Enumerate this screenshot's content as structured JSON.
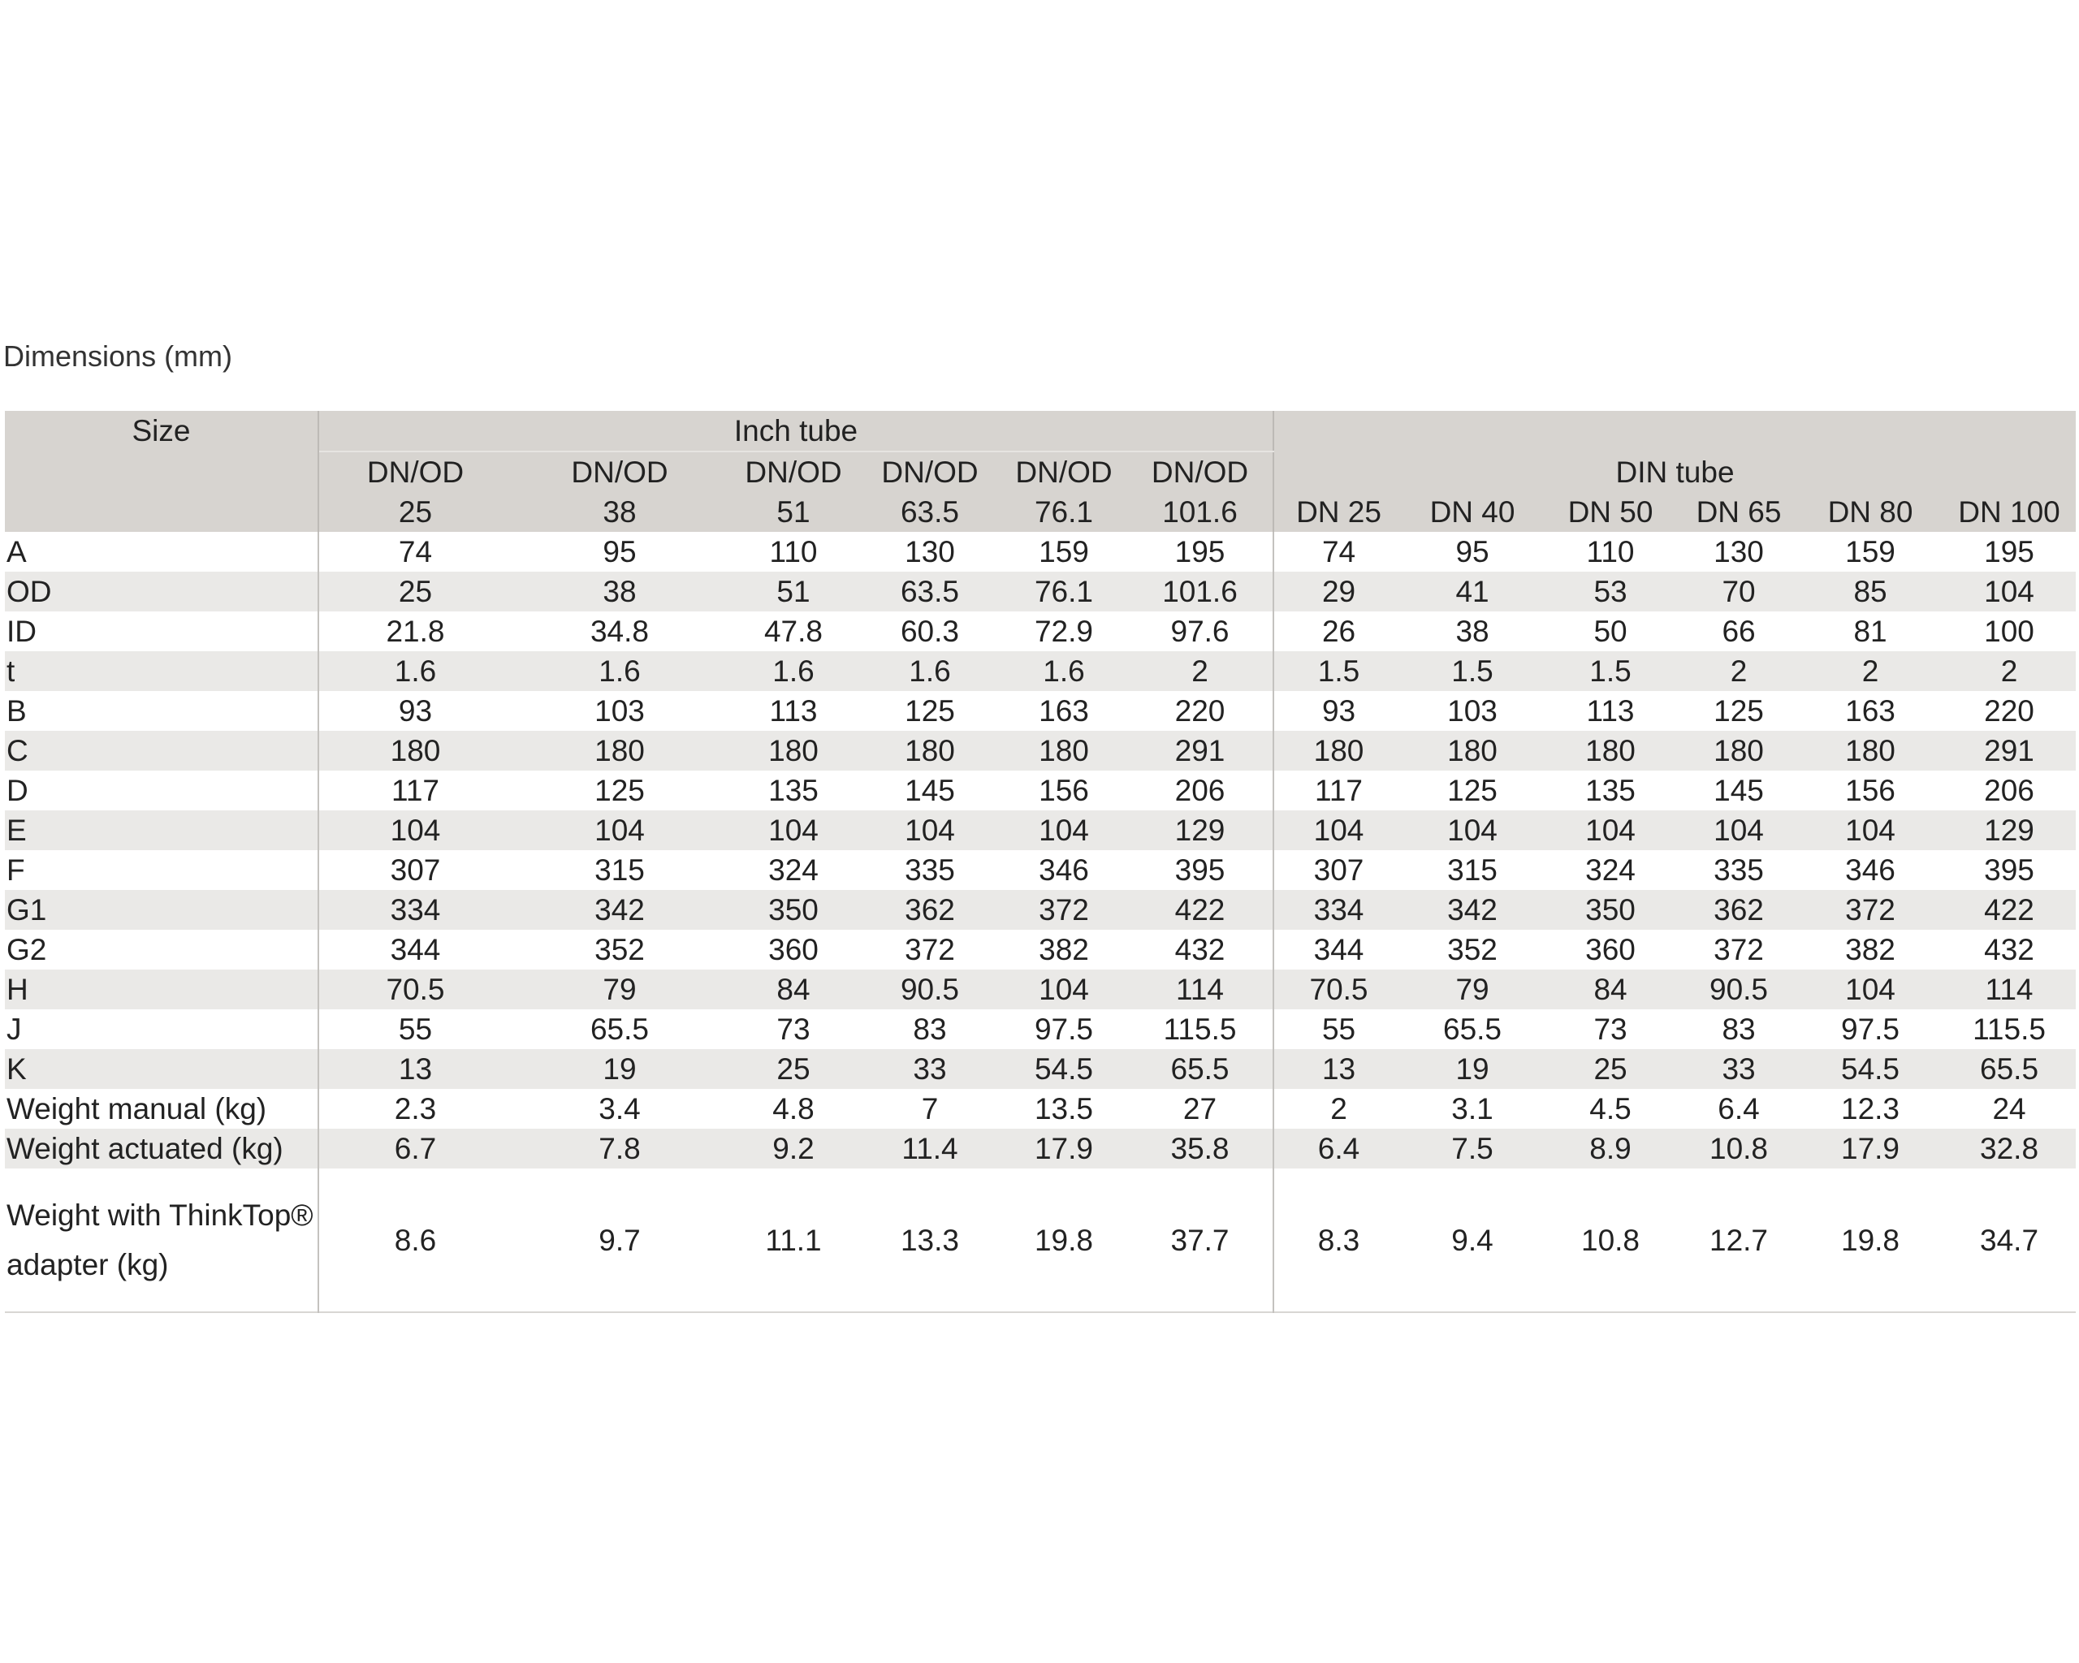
{
  "title": "Dimensions (mm)",
  "table": {
    "size_header": "Size",
    "inch_group": "Inch tube",
    "din_group": "DIN tube",
    "inch_columns": [
      {
        "top": "DN/OD",
        "bottom": "25"
      },
      {
        "top": "DN/OD",
        "bottom": "38"
      },
      {
        "top": "DN/OD",
        "bottom": "51"
      },
      {
        "top": "DN/OD",
        "bottom": "63.5"
      },
      {
        "top": "DN/OD",
        "bottom": "76.1"
      },
      {
        "top": "DN/OD",
        "bottom": "101.6"
      }
    ],
    "din_columns": [
      "DN 25",
      "DN 40",
      "DN 50",
      "DN 65",
      "DN 80",
      "DN 100"
    ],
    "rows": [
      {
        "label": "A",
        "values": [
          "74",
          "95",
          "110",
          "130",
          "159",
          "195",
          "74",
          "95",
          "110",
          "130",
          "159",
          "195"
        ]
      },
      {
        "label": "OD",
        "values": [
          "25",
          "38",
          "51",
          "63.5",
          "76.1",
          "101.6",
          "29",
          "41",
          "53",
          "70",
          "85",
          "104"
        ]
      },
      {
        "label": "ID",
        "values": [
          "21.8",
          "34.8",
          "47.8",
          "60.3",
          "72.9",
          "97.6",
          "26",
          "38",
          "50",
          "66",
          "81",
          "100"
        ]
      },
      {
        "label": "t",
        "values": [
          "1.6",
          "1.6",
          "1.6",
          "1.6",
          "1.6",
          "2",
          "1.5",
          "1.5",
          "1.5",
          "2",
          "2",
          "2"
        ]
      },
      {
        "label": "B",
        "values": [
          "93",
          "103",
          "113",
          "125",
          "163",
          "220",
          "93",
          "103",
          "113",
          "125",
          "163",
          "220"
        ]
      },
      {
        "label": "C",
        "values": [
          "180",
          "180",
          "180",
          "180",
          "180",
          "291",
          "180",
          "180",
          "180",
          "180",
          "180",
          "291"
        ]
      },
      {
        "label": "D",
        "values": [
          "117",
          "125",
          "135",
          "145",
          "156",
          "206",
          "117",
          "125",
          "135",
          "145",
          "156",
          "206"
        ]
      },
      {
        "label": "E",
        "values": [
          "104",
          "104",
          "104",
          "104",
          "104",
          "129",
          "104",
          "104",
          "104",
          "104",
          "104",
          "129"
        ]
      },
      {
        "label": "F",
        "values": [
          "307",
          "315",
          "324",
          "335",
          "346",
          "395",
          "307",
          "315",
          "324",
          "335",
          "346",
          "395"
        ]
      },
      {
        "label": "G1",
        "values": [
          "334",
          "342",
          "350",
          "362",
          "372",
          "422",
          "334",
          "342",
          "350",
          "362",
          "372",
          "422"
        ]
      },
      {
        "label": "G2",
        "values": [
          "344",
          "352",
          "360",
          "372",
          "382",
          "432",
          "344",
          "352",
          "360",
          "372",
          "382",
          "432"
        ]
      },
      {
        "label": "H",
        "values": [
          "70.5",
          "79",
          "84",
          "90.5",
          "104",
          "114",
          "70.5",
          "79",
          "84",
          "90.5",
          "104",
          "114"
        ]
      },
      {
        "label": "J",
        "values": [
          "55",
          "65.5",
          "73",
          "83",
          "97.5",
          "115.5",
          "55",
          "65.5",
          "73",
          "83",
          "97.5",
          "115.5"
        ]
      },
      {
        "label": "K",
        "values": [
          "13",
          "19",
          "25",
          "33",
          "54.5",
          "65.5",
          "13",
          "19",
          "25",
          "33",
          "54.5",
          "65.5"
        ]
      },
      {
        "label": "Weight manual (kg)",
        "values": [
          "2.3",
          "3.4",
          "4.8",
          "7",
          "13.5",
          "27",
          "2",
          "3.1",
          "4.5",
          "6.4",
          "12.3",
          "24"
        ]
      },
      {
        "label": "Weight actuated (kg)",
        "values": [
          "6.7",
          "7.8",
          "9.2",
          "11.4",
          "17.9",
          "35.8",
          "6.4",
          "7.5",
          "8.9",
          "10.8",
          "17.9",
          "32.8"
        ]
      },
      {
        "label": "Weight with ThinkTop® adapter (kg)",
        "values": [
          "8.6",
          "9.7",
          "11.1",
          "13.3",
          "19.8",
          "37.7",
          "8.3",
          "9.4",
          "10.8",
          "12.7",
          "19.8",
          "34.7"
        ]
      }
    ]
  }
}
